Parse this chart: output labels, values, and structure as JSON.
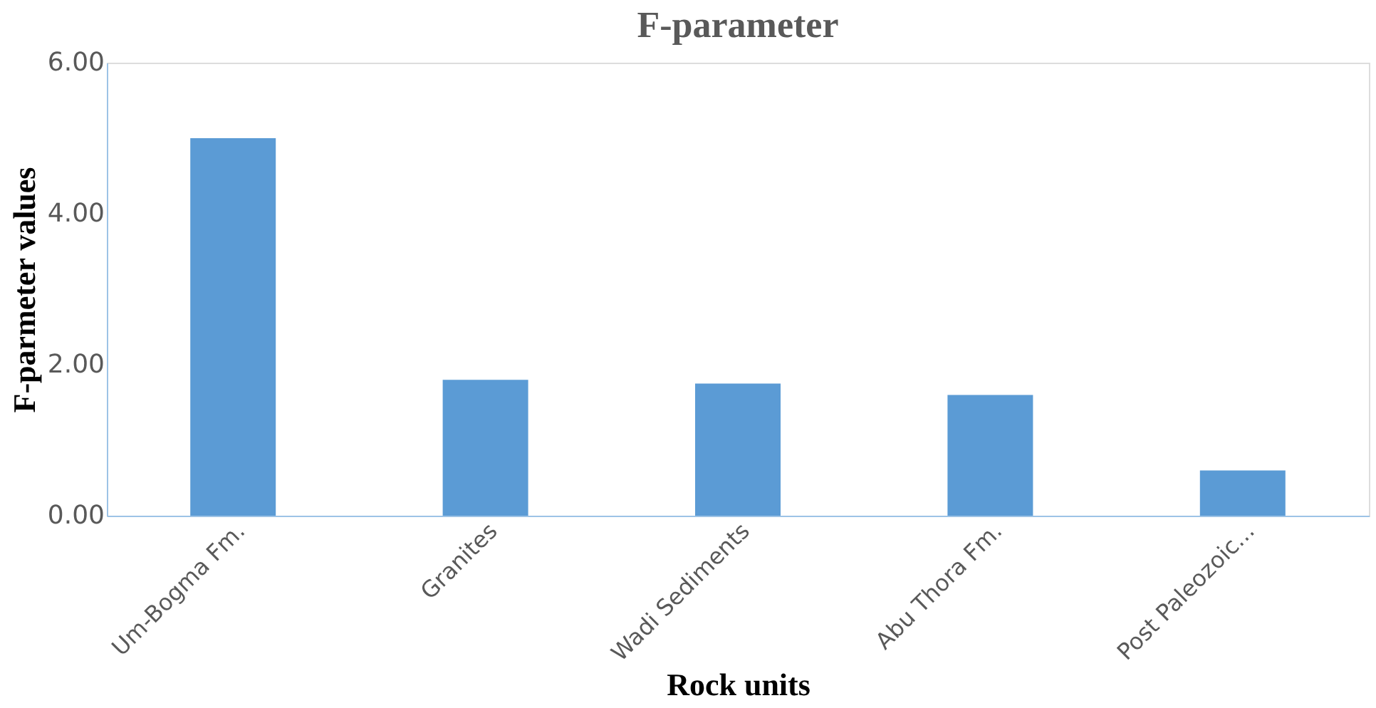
{
  "chart_data": {
    "type": "bar",
    "title": "F-parameter",
    "xlabel": "Rock units",
    "ylabel": "F-parmeter values",
    "categories": [
      "Um-Bogma Fm.",
      "Granites",
      "Wadi Sediments",
      "Abu Thora Fm.",
      "Post Paleozoic..."
    ],
    "values": [
      5.0,
      1.8,
      1.75,
      1.6,
      0.6
    ],
    "color": "#5b9bd5",
    "ylim": [
      0,
      6
    ],
    "yticks": [
      {
        "value": 0,
        "label": "0.00"
      },
      {
        "value": 2,
        "label": "2.00"
      },
      {
        "value": 4,
        "label": "4.00"
      },
      {
        "value": 6,
        "label": "6.00"
      }
    ],
    "grid": false
  }
}
